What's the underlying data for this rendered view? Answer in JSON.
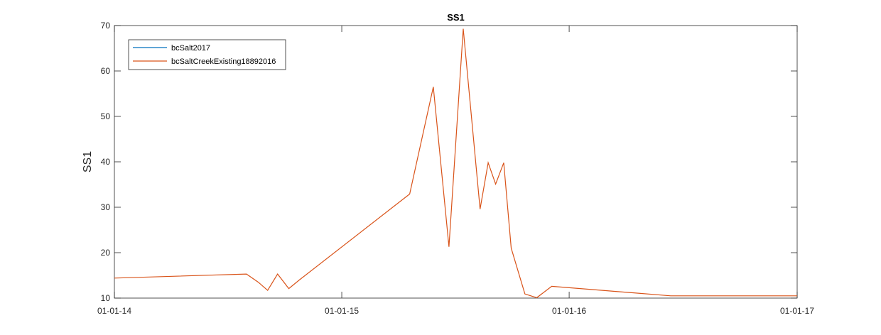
{
  "chart_data": {
    "type": "line",
    "title": "SS1",
    "xlabel": "",
    "ylabel": "SS1",
    "xlim": [
      "2014-01-01",
      "2017-01-01"
    ],
    "ylim": [
      10,
      70
    ],
    "x_ticks": [
      {
        "date": "2014-01-01",
        "label": "01-01-14"
      },
      {
        "date": "2015-01-01",
        "label": "01-01-15"
      },
      {
        "date": "2016-01-01",
        "label": "01-01-16"
      },
      {
        "date": "2017-01-01",
        "label": "01-01-17"
      }
    ],
    "y_ticks": [
      10,
      20,
      30,
      40,
      50,
      60,
      70
    ],
    "grid": false,
    "legend_position": "top-left",
    "series": [
      {
        "name": "bcSalt2017",
        "color": "#0072BD",
        "points": []
      },
      {
        "name": "bcSaltCreekExisting18892016",
        "color": "#D95319",
        "points": [
          {
            "x": "2014-01-01",
            "y": 14.4
          },
          {
            "x": "2014-08-01",
            "y": 15.3
          },
          {
            "x": "2014-08-20",
            "y": 13.5
          },
          {
            "x": "2014-09-04",
            "y": 11.7
          },
          {
            "x": "2014-09-20",
            "y": 15.3
          },
          {
            "x": "2014-10-08",
            "y": 12.1
          },
          {
            "x": "2014-10-25",
            "y": 14.0
          },
          {
            "x": "2015-04-20",
            "y": 32.9
          },
          {
            "x": "2015-05-28",
            "y": 56.5
          },
          {
            "x": "2015-06-22",
            "y": 21.3
          },
          {
            "x": "2015-07-15",
            "y": 69.3
          },
          {
            "x": "2015-08-11",
            "y": 29.6
          },
          {
            "x": "2015-08-24",
            "y": 39.8
          },
          {
            "x": "2015-09-05",
            "y": 35.1
          },
          {
            "x": "2015-09-18",
            "y": 39.8
          },
          {
            "x": "2015-09-30",
            "y": 21.0
          },
          {
            "x": "2015-10-22",
            "y": 10.9
          },
          {
            "x": "2015-11-10",
            "y": 10.1
          },
          {
            "x": "2015-12-04",
            "y": 12.6
          },
          {
            "x": "2016-06-12",
            "y": 10.5
          },
          {
            "x": "2017-01-01",
            "y": 10.5
          }
        ]
      }
    ]
  }
}
